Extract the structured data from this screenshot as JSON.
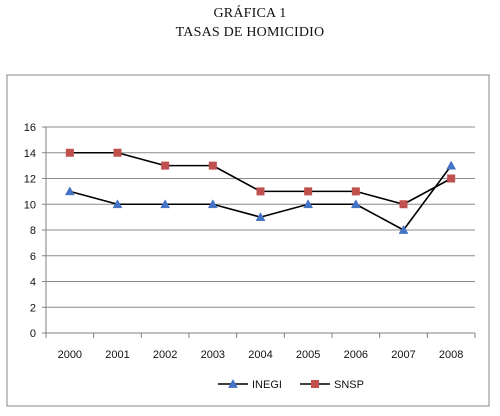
{
  "titles": {
    "line1": "GRÁFICA 1",
    "line2": "TASAS DE HOMICIDIO"
  },
  "chart_data": {
    "type": "line",
    "x": [
      "2000",
      "2001",
      "2002",
      "2003",
      "2004",
      "2005",
      "2006",
      "2007",
      "2008"
    ],
    "series": [
      {
        "name": "INEGI",
        "values": [
          11,
          10,
          10,
          10,
          9,
          10,
          10,
          8,
          13
        ],
        "color": "#4472C4",
        "marker": "triangle"
      },
      {
        "name": "SNSP",
        "values": [
          14,
          14,
          13,
          13,
          11,
          11,
          11,
          10,
          12
        ],
        "color": "#C0504D",
        "marker": "square"
      }
    ],
    "ylim": [
      0,
      16
    ],
    "yticks": [
      0,
      2,
      4,
      6,
      8,
      10,
      12,
      14,
      16
    ],
    "grid": true,
    "legend": "bottom",
    "line_color": "#000000"
  }
}
